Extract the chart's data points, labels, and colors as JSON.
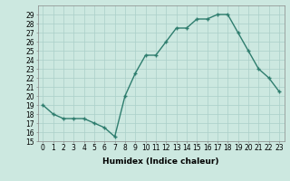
{
  "x": [
    0,
    1,
    2,
    3,
    4,
    5,
    6,
    7,
    8,
    9,
    10,
    11,
    12,
    13,
    14,
    15,
    16,
    17,
    18,
    19,
    20,
    21,
    22,
    23
  ],
  "y": [
    19,
    18,
    17.5,
    17.5,
    17.5,
    17,
    16.5,
    15.5,
    20,
    22.5,
    24.5,
    24.5,
    26,
    27.5,
    27.5,
    28.5,
    28.5,
    29,
    29,
    27,
    25,
    23,
    22,
    20.5
  ],
  "xlabel": "Humidex (Indice chaleur)",
  "line_color": "#2e7d6e",
  "marker": "+",
  "markersize": 3.5,
  "linewidth": 1.0,
  "bg_color": "#cce8e0",
  "grid_color": "#aacfc8",
  "ylim": [
    15,
    30
  ],
  "xlim": [
    -0.5,
    23.5
  ],
  "yticks": [
    15,
    16,
    17,
    18,
    19,
    20,
    21,
    22,
    23,
    24,
    25,
    26,
    27,
    28,
    29
  ],
  "xticks": [
    0,
    1,
    2,
    3,
    4,
    5,
    6,
    7,
    8,
    9,
    10,
    11,
    12,
    13,
    14,
    15,
    16,
    17,
    18,
    19,
    20,
    21,
    22,
    23
  ],
  "xlabel_fontsize": 6.5,
  "tick_fontsize": 5.5
}
